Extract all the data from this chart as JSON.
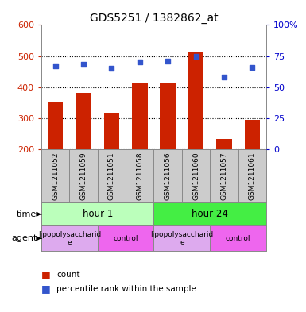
{
  "title": "GDS5251 / 1382862_at",
  "samples": [
    "GSM1211052",
    "GSM1211059",
    "GSM1211051",
    "GSM1211058",
    "GSM1211056",
    "GSM1211060",
    "GSM1211057",
    "GSM1211061"
  ],
  "counts": [
    352,
    382,
    318,
    415,
    415,
    515,
    232,
    295
  ],
  "percentiles": [
    67,
    68,
    65,
    70,
    71,
    75,
    58,
    66
  ],
  "ylim_left": [
    200,
    600
  ],
  "ylim_right": [
    0,
    100
  ],
  "yticks_left": [
    200,
    300,
    400,
    500,
    600
  ],
  "yticks_right": [
    0,
    25,
    50,
    75,
    100
  ],
  "bar_color": "#cc2200",
  "dot_color": "#3355cc",
  "time_groups": [
    {
      "label": "hour 1",
      "start": 0,
      "end": 4,
      "color": "#bbffbb"
    },
    {
      "label": "hour 24",
      "start": 4,
      "end": 8,
      "color": "#44ee44"
    }
  ],
  "agent_groups": [
    {
      "label": "lipopolysaccharid\ne",
      "start": 0,
      "end": 2,
      "color": "#ddaaee"
    },
    {
      "label": "control",
      "start": 2,
      "end": 4,
      "color": "#ee66ee"
    },
    {
      "label": "lipopolysaccharid\ne",
      "start": 4,
      "end": 6,
      "color": "#ddaaee"
    },
    {
      "label": "control",
      "start": 6,
      "end": 8,
      "color": "#ee66ee"
    }
  ],
  "background_color": "#ffffff",
  "grid_color": "#000000",
  "left_label_color": "#cc2200",
  "right_label_color": "#0000cc",
  "sample_box_color": "#cccccc",
  "legend_items": [
    {
      "color": "#cc2200",
      "label": "count"
    },
    {
      "color": "#3355cc",
      "label": "percentile rank within the sample"
    }
  ]
}
